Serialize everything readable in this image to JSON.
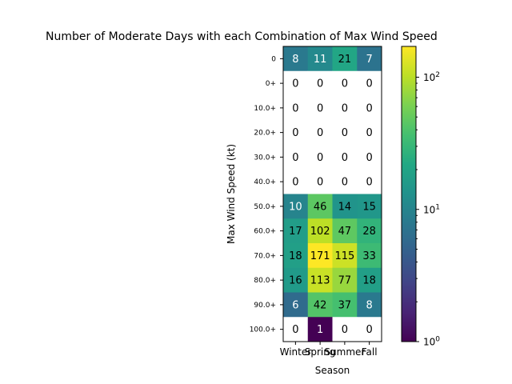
{
  "chart_data": {
    "type": "heatmap",
    "title": "Number of Moderate Days with each Combination of Max Wind Speed",
    "xlabel": "Season",
    "ylabel": "Max Wind Speed (kt)",
    "x_categories": [
      "Winter",
      "Spring",
      "Summer",
      "Fall"
    ],
    "y_categories": [
      "0",
      "0+",
      "10.0+",
      "20.0+",
      "30.0+",
      "40.0+",
      "50.0+",
      "60.0+",
      "70.0+",
      "80.0+",
      "90.0+",
      "100.0+"
    ],
    "values": [
      [
        8,
        11,
        21,
        7
      ],
      [
        0,
        0,
        0,
        0
      ],
      [
        0,
        0,
        0,
        0
      ],
      [
        0,
        0,
        0,
        0
      ],
      [
        0,
        0,
        0,
        0
      ],
      [
        0,
        0,
        0,
        0
      ],
      [
        10,
        46,
        14,
        15
      ],
      [
        17,
        102,
        47,
        28
      ],
      [
        18,
        171,
        115,
        33
      ],
      [
        16,
        113,
        77,
        18
      ],
      [
        6,
        42,
        37,
        8
      ],
      [
        0,
        1,
        0,
        0
      ]
    ],
    "color_scale": "log",
    "colormap": "viridis",
    "colorbar_range": [
      1,
      171
    ],
    "colorbar_tick_labels": [
      "10^0",
      "10^1",
      "10^2"
    ],
    "zero_color": "#ffffff"
  }
}
